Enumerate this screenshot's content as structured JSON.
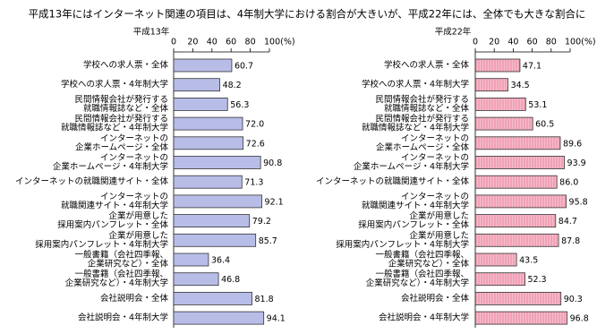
{
  "title": "平成13年にはインターネット関連の項目は、4年制大学における割合が大きいが、平成22年には、全体でも大きな割合に",
  "chart_data": [
    {
      "type": "bar",
      "orientation": "horizontal",
      "title": "平成13年",
      "color": "#b8bde8",
      "pattern": "solid",
      "categories": [
        [
          "学校への求人票・全体"
        ],
        [
          "学校への求人票・4年制大学"
        ],
        [
          "民間情報会社が発行する",
          "就職情報誌など・全体"
        ],
        [
          "民間情報会社が発行する",
          "就職情報誌など・4年制大学"
        ],
        [
          "インターネットの",
          "企業ホームページ・全体"
        ],
        [
          "インターネットの",
          "企業ホームページ・4年制大学"
        ],
        [
          "インターネットの就職関連サイト・全体"
        ],
        [
          "インターネットの",
          "就職関連サイト・4年制大学"
        ],
        [
          "企業が用意した",
          "採用案内パンフレット・全体"
        ],
        [
          "企業が用意した",
          "採用案内パンフレット・4年制大学"
        ],
        [
          "一般書籍（会社四季報、",
          "企業研究など）・全体"
        ],
        [
          "一般書籍（会社四季報、",
          "企業研究など）・4年制大学"
        ],
        [
          "会社説明会・全体"
        ],
        [
          "会社説明会・4年制大学"
        ]
      ],
      "values": [
        60.7,
        48.2,
        56.3,
        72.0,
        72.6,
        90.8,
        71.3,
        92.1,
        79.2,
        85.7,
        36.4,
        46.8,
        81.8,
        94.1
      ],
      "value_labels": [
        "60.7",
        "48.2",
        "56.3",
        "72.0",
        "72.6",
        "90.8",
        "71.3",
        "92.1",
        "79.2",
        "85.7",
        "36.4",
        "46.8",
        "81.8",
        "94.1"
      ],
      "xlim": [
        0,
        100
      ],
      "xticks": [
        0,
        20,
        40,
        60,
        80,
        {
          "value": 100,
          "label": "100(%)"
        }
      ]
    },
    {
      "type": "bar",
      "orientation": "horizontal",
      "title": "平成22年",
      "color": "#f6bccb",
      "pattern": "striped",
      "categories": [
        [
          "学校への求人票・全体"
        ],
        [
          "学校への求人票・4年制大学"
        ],
        [
          "民間情報会社が発行する",
          "就職情報誌など・全体"
        ],
        [
          "民間情報会社が発行する",
          "就職情報誌など・4年制大学"
        ],
        [
          "インターネットの",
          "企業ホームページ・全体"
        ],
        [
          "インターネットの",
          "企業ホームページ・4年制大学"
        ],
        [
          "インターネットの就職関連サイト・全体"
        ],
        [
          "インターネットの",
          "就職関連サイト・4年制大学"
        ],
        [
          "企業が用意した",
          "採用案内パンフレット・全体"
        ],
        [
          "企業が用意した",
          "採用案内パンフレット・4年制大学"
        ],
        [
          "一般書籍（会社四季報、",
          "企業研究など）・全体"
        ],
        [
          "一般書籍（会社四季報、",
          "企業研究など）・4年制大学"
        ],
        [
          "会社説明会・全体"
        ],
        [
          "会社説明会・4年制大学"
        ]
      ],
      "values": [
        47.1,
        34.5,
        53.1,
        60.5,
        89.6,
        93.9,
        86.0,
        95.8,
        84.7,
        87.8,
        43.5,
        52.3,
        90.3,
        96.8
      ],
      "value_labels": [
        "47.1",
        "34.5",
        "53.1",
        "60.5",
        "89.6",
        "93.9",
        "86.0",
        "95.8",
        "84.7",
        "87.8",
        "43.5",
        "52.3",
        "90.3",
        "96.8"
      ],
      "xlim": [
        0,
        100
      ],
      "xticks": [
        0,
        20,
        40,
        60,
        80,
        {
          "value": 100,
          "label": "100(%)"
        }
      ]
    }
  ]
}
